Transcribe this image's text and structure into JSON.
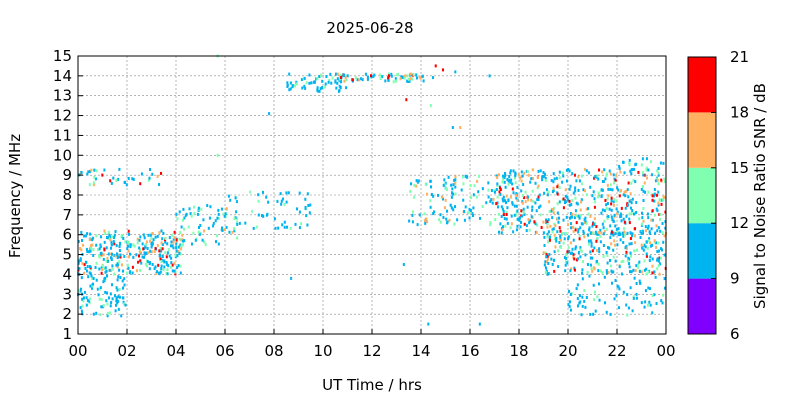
{
  "chart_data": {
    "type": "heatmap",
    "title": "2025-06-28",
    "xlabel": "UT Time / hrs",
    "ylabel": "Frequency / MHz",
    "xlim": [
      0,
      24
    ],
    "ylim": [
      1,
      15
    ],
    "x_ticks": [
      "00",
      "02",
      "04",
      "06",
      "08",
      "10",
      "12",
      "14",
      "16",
      "18",
      "20",
      "22",
      "00"
    ],
    "y_ticks": [
      "1",
      "2",
      "3",
      "4",
      "5",
      "6",
      "7",
      "8",
      "9",
      "10",
      "11",
      "12",
      "13",
      "14",
      "15"
    ],
    "grid": true,
    "colorbar": {
      "label": "Signal to Noise Ratio SNR / dB",
      "ticks": [
        "6",
        "9",
        "12",
        "15",
        "18",
        "21"
      ],
      "range": [
        6,
        21
      ],
      "bands": [
        {
          "from": 6,
          "to": 9,
          "color": "#7f00ff"
        },
        {
          "from": 9,
          "to": 12,
          "color": "#00b4f0"
        },
        {
          "from": 12,
          "to": 15,
          "color": "#80ffb0"
        },
        {
          "from": 15,
          "to": 18,
          "color": "#ffb060"
        },
        {
          "from": 18,
          "to": 21,
          "color": "#ff0000"
        }
      ]
    },
    "regions": [
      {
        "t": [
          0.0,
          4.3
        ],
        "f": [
          4.0,
          6.2
        ],
        "n": 320,
        "snr": [
          9,
          20
        ]
      },
      {
        "t": [
          0.0,
          2.0
        ],
        "f": [
          1.9,
          4.0
        ],
        "n": 90,
        "snr": [
          9,
          14
        ]
      },
      {
        "t": [
          0.0,
          3.5
        ],
        "f": [
          8.5,
          9.3
        ],
        "n": 40,
        "snr": [
          9,
          19
        ]
      },
      {
        "t": [
          4.0,
          6.5
        ],
        "f": [
          5.5,
          7.5
        ],
        "n": 70,
        "snr": [
          9,
          17
        ]
      },
      {
        "t": [
          6.0,
          9.5
        ],
        "f": [
          6.3,
          8.2
        ],
        "n": 60,
        "snr": [
          9,
          14
        ]
      },
      {
        "t": [
          8.5,
          11.0
        ],
        "f": [
          13.2,
          14.1
        ],
        "n": 60,
        "snr": [
          9,
          14
        ]
      },
      {
        "t": [
          10.5,
          14.5
        ],
        "f": [
          13.7,
          14.1
        ],
        "n": 70,
        "snr": [
          9,
          21
        ]
      },
      {
        "t": [
          13.5,
          15.5
        ],
        "f": [
          6.5,
          8.8
        ],
        "n": 60,
        "snr": [
          9,
          18
        ]
      },
      {
        "t": [
          15.0,
          18.0
        ],
        "f": [
          6.5,
          9.0
        ],
        "n": 90,
        "snr": [
          9,
          16
        ]
      },
      {
        "t": [
          17.0,
          24.0
        ],
        "f": [
          6.0,
          9.3
        ],
        "n": 520,
        "snr": [
          9,
          20
        ]
      },
      {
        "t": [
          19.0,
          24.0
        ],
        "f": [
          4.0,
          6.2
        ],
        "n": 260,
        "snr": [
          9,
          20
        ]
      },
      {
        "t": [
          20.0,
          24.0
        ],
        "f": [
          1.9,
          4.0
        ],
        "n": 80,
        "snr": [
          9,
          13
        ]
      },
      {
        "t": [
          22.0,
          24.0
        ],
        "f": [
          9.2,
          9.9
        ],
        "n": 20,
        "snr": [
          9,
          16
        ]
      }
    ],
    "points": [
      {
        "t": 14.6,
        "f": 14.5,
        "snr": 20
      },
      {
        "t": 14.9,
        "f": 14.3,
        "snr": 20
      },
      {
        "t": 15.6,
        "f": 11.4,
        "snr": 16
      },
      {
        "t": 15.3,
        "f": 11.4,
        "snr": 10
      },
      {
        "t": 14.3,
        "f": 1.5,
        "snr": 10
      },
      {
        "t": 16.4,
        "f": 1.5,
        "snr": 10
      },
      {
        "t": 8.7,
        "f": 3.8,
        "snr": 10
      },
      {
        "t": 7.8,
        "f": 12.1,
        "snr": 10
      },
      {
        "t": 5.7,
        "f": 15.0,
        "snr": 13
      },
      {
        "t": 5.7,
        "f": 10.0,
        "snr": 13
      },
      {
        "t": 13.3,
        "f": 4.5,
        "snr": 10
      },
      {
        "t": 13.4,
        "f": 12.8,
        "snr": 19
      },
      {
        "t": 14.4,
        "f": 12.5,
        "snr": 14
      },
      {
        "t": 15.4,
        "f": 14.2,
        "snr": 10
      },
      {
        "t": 16.8,
        "f": 14.0,
        "snr": 10
      }
    ]
  }
}
